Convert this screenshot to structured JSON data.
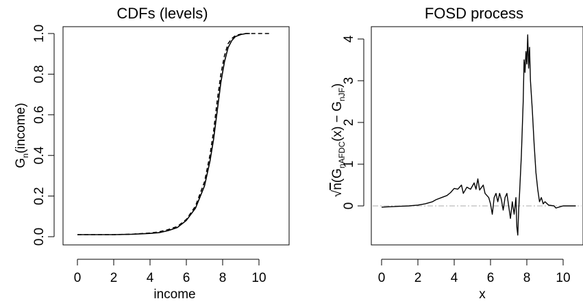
{
  "chart_data": [
    {
      "type": "line",
      "title": "CDFs (levels)",
      "xlabel": "income",
      "ylabel": "G",
      "ylabel_sub": "n",
      "ylabel_tail": "(income)",
      "xlim": [
        0,
        10.7
      ],
      "ylim": [
        0,
        1.0
      ],
      "x_ticks": [
        "0",
        "2",
        "4",
        "6",
        "8",
        "10"
      ],
      "y_ticks": [
        "0.0",
        "0.2",
        "0.4",
        "0.6",
        "0.8",
        "1.0"
      ],
      "grid": false,
      "series": [
        {
          "style": "solid",
          "color": "#000000",
          "points": [
            [
              0,
              0.01
            ],
            [
              1,
              0.01
            ],
            [
              2,
              0.01
            ],
            [
              3,
              0.012
            ],
            [
              4,
              0.016
            ],
            [
              4.5,
              0.02
            ],
            [
              5,
              0.03
            ],
            [
              5.5,
              0.045
            ],
            [
              6,
              0.08
            ],
            [
              6.5,
              0.14
            ],
            [
              7,
              0.25
            ],
            [
              7.3,
              0.37
            ],
            [
              7.5,
              0.48
            ],
            [
              7.7,
              0.62
            ],
            [
              7.9,
              0.76
            ],
            [
              8.1,
              0.86
            ],
            [
              8.3,
              0.93
            ],
            [
              8.5,
              0.965
            ],
            [
              8.7,
              0.985
            ],
            [
              9,
              0.995
            ],
            [
              9.3,
              1.0
            ],
            [
              9.5,
              1.0
            ]
          ]
        },
        {
          "style": "dashed",
          "color": "#000000",
          "points": [
            [
              0,
              0.01
            ],
            [
              1,
              0.01
            ],
            [
              2,
              0.01
            ],
            [
              3,
              0.012
            ],
            [
              4,
              0.018
            ],
            [
              4.5,
              0.024
            ],
            [
              5,
              0.035
            ],
            [
              5.5,
              0.05
            ],
            [
              6,
              0.085
            ],
            [
              6.5,
              0.15
            ],
            [
              7,
              0.27
            ],
            [
              7.3,
              0.4
            ],
            [
              7.5,
              0.52
            ],
            [
              7.7,
              0.67
            ],
            [
              7.9,
              0.8
            ],
            [
              8.1,
              0.89
            ],
            [
              8.3,
              0.95
            ],
            [
              8.5,
              0.975
            ],
            [
              8.7,
              0.99
            ],
            [
              9,
              0.997
            ],
            [
              9.3,
              1.0
            ],
            [
              10.7,
              1.0
            ]
          ]
        }
      ]
    },
    {
      "type": "line",
      "title": "FOSD process",
      "xlabel": "x",
      "ylabel_parts": {
        "sqrt": "√",
        "n": "n",
        "open": "(G",
        "sub1": "nAFDC",
        "mid": "(x) − G",
        "sub2": "nJF",
        "close": ")"
      },
      "xlim": [
        0,
        10.7
      ],
      "ylim": [
        -0.7,
        4.1
      ],
      "x_ticks": [
        "0",
        "2",
        "4",
        "6",
        "8",
        "10"
      ],
      "y_ticks": [
        "0",
        "1",
        "2",
        "3",
        "4"
      ],
      "grid": false,
      "reference_line": {
        "y": 0,
        "style": "dashdot",
        "color": "#aaaaaa"
      },
      "series": [
        {
          "style": "solid",
          "color": "#000000",
          "points": [
            [
              0,
              -0.03
            ],
            [
              0.5,
              -0.02
            ],
            [
              1,
              -0.01
            ],
            [
              1.5,
              0.0
            ],
            [
              2,
              0.02
            ],
            [
              2.4,
              0.05
            ],
            [
              2.8,
              0.1
            ],
            [
              3,
              0.15
            ],
            [
              3.3,
              0.2
            ],
            [
              3.6,
              0.25
            ],
            [
              3.8,
              0.32
            ],
            [
              4.0,
              0.42
            ],
            [
              4.2,
              0.4
            ],
            [
              4.4,
              0.5
            ],
            [
              4.5,
              0.3
            ],
            [
              4.7,
              0.45
            ],
            [
              4.9,
              0.4
            ],
            [
              5.1,
              0.55
            ],
            [
              5.2,
              0.4
            ],
            [
              5.3,
              0.65
            ],
            [
              5.4,
              0.38
            ],
            [
              5.6,
              0.5
            ],
            [
              5.7,
              0.3
            ],
            [
              5.9,
              0.2
            ],
            [
              6.0,
              0.05
            ],
            [
              6.1,
              -0.2
            ],
            [
              6.2,
              0.2
            ],
            [
              6.3,
              0.3
            ],
            [
              6.4,
              0.1
            ],
            [
              6.5,
              0.3
            ],
            [
              6.6,
              0.15
            ],
            [
              6.7,
              -0.1
            ],
            [
              6.8,
              0.2
            ],
            [
              6.9,
              0.3
            ],
            [
              7.0,
              0.0
            ],
            [
              7.1,
              -0.3
            ],
            [
              7.2,
              0.1
            ],
            [
              7.3,
              -0.2
            ],
            [
              7.4,
              0.2
            ],
            [
              7.45,
              -0.5
            ],
            [
              7.5,
              -0.7
            ],
            [
              7.55,
              -0.1
            ],
            [
              7.6,
              0.3
            ],
            [
              7.7,
              1.2
            ],
            [
              7.8,
              2.5
            ],
            [
              7.85,
              3.5
            ],
            [
              7.9,
              3.2
            ],
            [
              7.95,
              3.7
            ],
            [
              8.0,
              3.4
            ],
            [
              8.05,
              4.1
            ],
            [
              8.1,
              3.3
            ],
            [
              8.15,
              3.8
            ],
            [
              8.2,
              3.0
            ],
            [
              8.3,
              2.3
            ],
            [
              8.4,
              1.5
            ],
            [
              8.5,
              0.8
            ],
            [
              8.6,
              0.4
            ],
            [
              8.7,
              0.1
            ],
            [
              8.8,
              0.2
            ],
            [
              8.9,
              0.05
            ],
            [
              9.0,
              0.1
            ],
            [
              9.2,
              0.02
            ],
            [
              9.5,
              0.0
            ],
            [
              9.6,
              -0.05
            ],
            [
              10,
              0.0
            ],
            [
              10.7,
              0.0
            ]
          ]
        }
      ]
    }
  ]
}
